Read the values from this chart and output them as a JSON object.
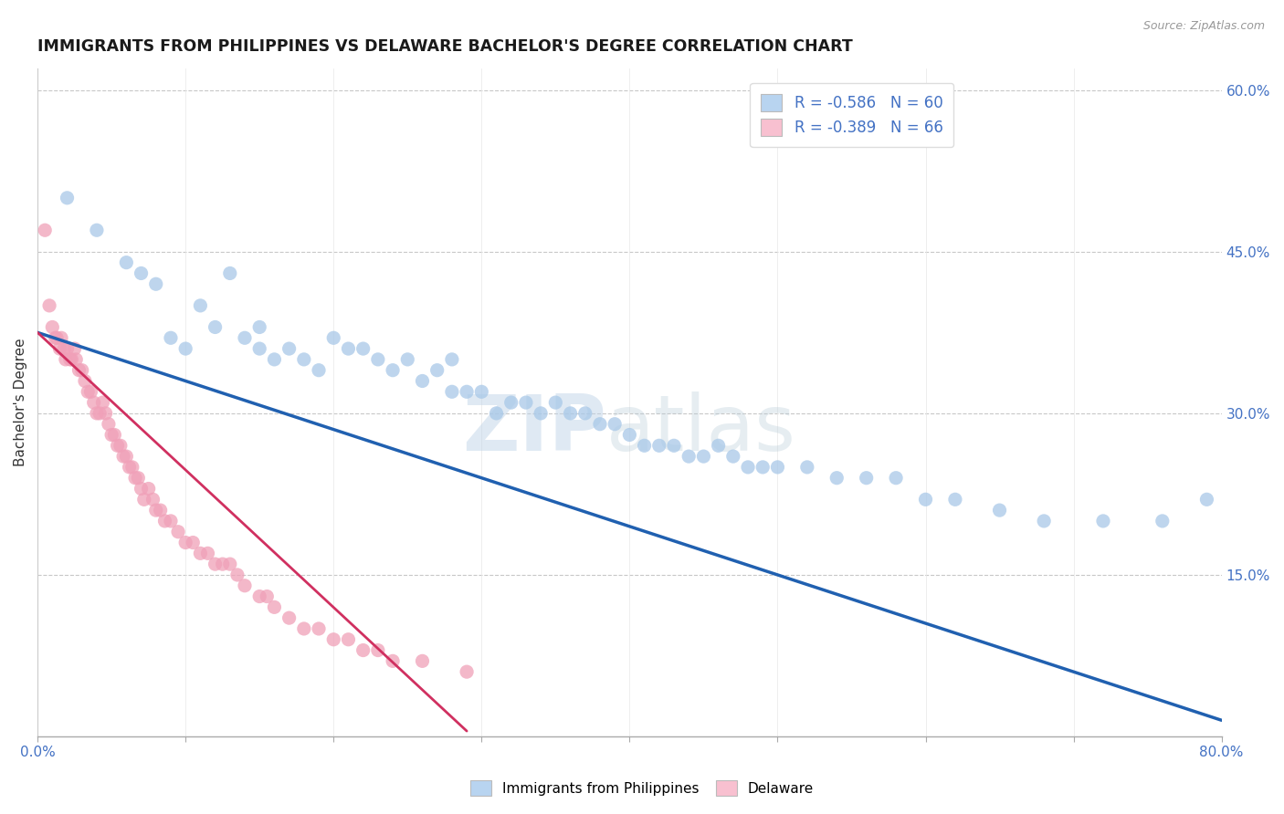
{
  "title": "IMMIGRANTS FROM PHILIPPINES VS DELAWARE BACHELOR'S DEGREE CORRELATION CHART",
  "source": "Source: ZipAtlas.com",
  "ylabel": "Bachelor's Degree",
  "right_yticks": [
    "60.0%",
    "45.0%",
    "30.0%",
    "15.0%"
  ],
  "right_ytick_vals": [
    0.6,
    0.45,
    0.3,
    0.15
  ],
  "legend_entry1": "R = -0.586   N = 60",
  "legend_entry2": "R = -0.389   N = 66",
  "watermark_zip": "ZIP",
  "watermark_atlas": "atlas",
  "blue_scatter": "#a8c8e8",
  "blue_line": "#2060b0",
  "pink_scatter": "#f0a0b8",
  "pink_line": "#d03060",
  "blue_legend_color": "#b8d4f0",
  "pink_legend_color": "#f8c0d0",
  "background": "#ffffff",
  "blue_dots_x": [
    0.02,
    0.04,
    0.06,
    0.07,
    0.08,
    0.09,
    0.1,
    0.11,
    0.12,
    0.13,
    0.14,
    0.15,
    0.15,
    0.16,
    0.17,
    0.18,
    0.19,
    0.2,
    0.21,
    0.22,
    0.23,
    0.24,
    0.25,
    0.26,
    0.27,
    0.28,
    0.28,
    0.29,
    0.3,
    0.31,
    0.32,
    0.33,
    0.34,
    0.35,
    0.36,
    0.37,
    0.38,
    0.39,
    0.4,
    0.41,
    0.42,
    0.43,
    0.44,
    0.45,
    0.46,
    0.47,
    0.48,
    0.49,
    0.5,
    0.52,
    0.54,
    0.56,
    0.58,
    0.6,
    0.62,
    0.65,
    0.68,
    0.72,
    0.76,
    0.79
  ],
  "blue_dots_y": [
    0.5,
    0.47,
    0.44,
    0.43,
    0.42,
    0.37,
    0.36,
    0.4,
    0.38,
    0.43,
    0.37,
    0.36,
    0.38,
    0.35,
    0.36,
    0.35,
    0.34,
    0.37,
    0.36,
    0.36,
    0.35,
    0.34,
    0.35,
    0.33,
    0.34,
    0.35,
    0.32,
    0.32,
    0.32,
    0.3,
    0.31,
    0.31,
    0.3,
    0.31,
    0.3,
    0.3,
    0.29,
    0.29,
    0.28,
    0.27,
    0.27,
    0.27,
    0.26,
    0.26,
    0.27,
    0.26,
    0.25,
    0.25,
    0.25,
    0.25,
    0.24,
    0.24,
    0.24,
    0.22,
    0.22,
    0.21,
    0.2,
    0.2,
    0.2,
    0.22
  ],
  "pink_dots_x": [
    0.005,
    0.008,
    0.01,
    0.012,
    0.013,
    0.015,
    0.016,
    0.018,
    0.019,
    0.02,
    0.022,
    0.023,
    0.025,
    0.026,
    0.028,
    0.03,
    0.032,
    0.034,
    0.036,
    0.038,
    0.04,
    0.042,
    0.044,
    0.046,
    0.048,
    0.05,
    0.052,
    0.054,
    0.056,
    0.058,
    0.06,
    0.062,
    0.064,
    0.066,
    0.068,
    0.07,
    0.072,
    0.075,
    0.078,
    0.08,
    0.083,
    0.086,
    0.09,
    0.095,
    0.1,
    0.105,
    0.11,
    0.115,
    0.12,
    0.125,
    0.13,
    0.135,
    0.14,
    0.15,
    0.155,
    0.16,
    0.17,
    0.18,
    0.19,
    0.2,
    0.21,
    0.22,
    0.23,
    0.24,
    0.26,
    0.29
  ],
  "pink_dots_y": [
    0.47,
    0.4,
    0.38,
    0.37,
    0.37,
    0.36,
    0.37,
    0.36,
    0.35,
    0.36,
    0.35,
    0.35,
    0.36,
    0.35,
    0.34,
    0.34,
    0.33,
    0.32,
    0.32,
    0.31,
    0.3,
    0.3,
    0.31,
    0.3,
    0.29,
    0.28,
    0.28,
    0.27,
    0.27,
    0.26,
    0.26,
    0.25,
    0.25,
    0.24,
    0.24,
    0.23,
    0.22,
    0.23,
    0.22,
    0.21,
    0.21,
    0.2,
    0.2,
    0.19,
    0.18,
    0.18,
    0.17,
    0.17,
    0.16,
    0.16,
    0.16,
    0.15,
    0.14,
    0.13,
    0.13,
    0.12,
    0.11,
    0.1,
    0.1,
    0.09,
    0.09,
    0.08,
    0.08,
    0.07,
    0.07,
    0.06
  ],
  "blue_line_x0": 0.0,
  "blue_line_x1": 0.8,
  "blue_line_y0": 0.375,
  "blue_line_y1": 0.015,
  "pink_line_x0": 0.0,
  "pink_line_x1": 0.29,
  "pink_line_y0": 0.375,
  "pink_line_y1": 0.005,
  "xlim": [
    0.0,
    0.8
  ],
  "ylim": [
    0.0,
    0.62
  ]
}
